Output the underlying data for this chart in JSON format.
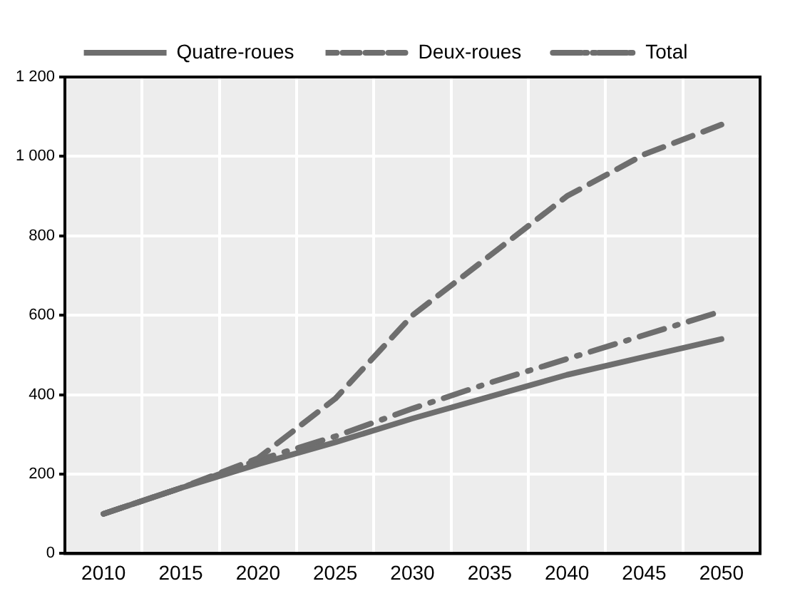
{
  "chart_data": {
    "type": "line",
    "categories": [
      "2010",
      "2015",
      "2020",
      "2025",
      "2030",
      "2035",
      "2040",
      "2045",
      "2050"
    ],
    "series": [
      {
        "name": "Quatre-roues",
        "color": "#6e6e6e",
        "line_style": "solid",
        "values": [
          100,
          165,
          225,
          280,
          340,
          395,
          450,
          495,
          540
        ]
      },
      {
        "name": "Deux-roues",
        "color": "#6e6e6e",
        "line_style": "dashed",
        "values": [
          100,
          165,
          240,
          390,
          600,
          750,
          900,
          1005,
          1080
        ]
      },
      {
        "name": "Total",
        "color": "#6e6e6e",
        "line_style": "dashdot",
        "values": [
          100,
          165,
          235,
          295,
          365,
          430,
          490,
          550,
          610
        ]
      }
    ],
    "ylim": [
      0,
      1200
    ],
    "yticks": [
      0,
      {
        "value": 200,
        "label": "200"
      },
      {
        "value": 400,
        "label": "400"
      },
      {
        "value": 600,
        "label": "600"
      },
      {
        "value": 800,
        "label": "800"
      },
      {
        "value": 1000,
        "label": "1 000"
      },
      {
        "value": 1200,
        "label": "1 200"
      }
    ],
    "grid": true,
    "legend": "top",
    "marker": "none"
  }
}
